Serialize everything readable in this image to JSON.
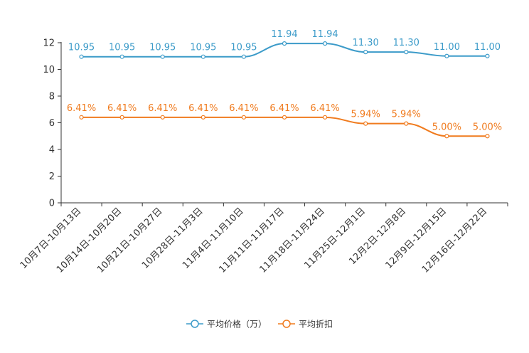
{
  "chart_data": {
    "type": "line",
    "categories": [
      "10月7日-10月13日",
      "10月14日-10月20日",
      "10月21日-10月27日",
      "10月28日-11月3日",
      "11月4日-11月10日",
      "11月11日-11月17日",
      "11月18日-11月24日",
      "11月25日-12月1日",
      "12月2日-12月8日",
      "12月9日-12月15日",
      "12月16日-12月22日"
    ],
    "series": [
      {
        "name": "平均价格（万）",
        "color": "#3c9bc9",
        "values": [
          10.95,
          10.95,
          10.95,
          10.95,
          10.95,
          11.94,
          11.94,
          11.3,
          11.3,
          11.0,
          11.0
        ],
        "labels": [
          "10.95",
          "10.95",
          "10.95",
          "10.95",
          "10.95",
          "11.94",
          "11.94",
          "11.30",
          "11.30",
          "11.00",
          "11.00"
        ]
      },
      {
        "name": "平均折扣",
        "color": "#f07b1e",
        "values": [
          6.41,
          6.41,
          6.41,
          6.41,
          6.41,
          6.41,
          6.41,
          5.94,
          5.94,
          5.0,
          5.0
        ],
        "labels": [
          "6.41%",
          "6.41%",
          "6.41%",
          "6.41%",
          "6.41%",
          "6.41%",
          "6.41%",
          "5.94%",
          "5.94%",
          "5.00%",
          "5.00%"
        ]
      }
    ],
    "y_ticks": [
      "0",
      "2",
      "4",
      "6",
      "8",
      "10",
      "12"
    ],
    "ylim": [
      0,
      12
    ],
    "title": "",
    "xlabel": "",
    "ylabel": "",
    "grid": false,
    "legend_position": "bottom"
  }
}
